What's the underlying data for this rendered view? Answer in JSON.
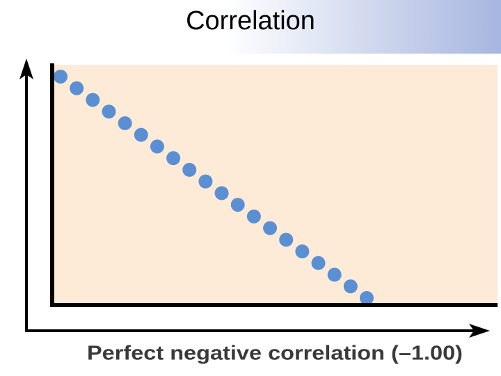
{
  "header": {
    "title": "Correlation"
  },
  "figure": {
    "caption": "Perfect negative correlation (–1.00)"
  }
}
